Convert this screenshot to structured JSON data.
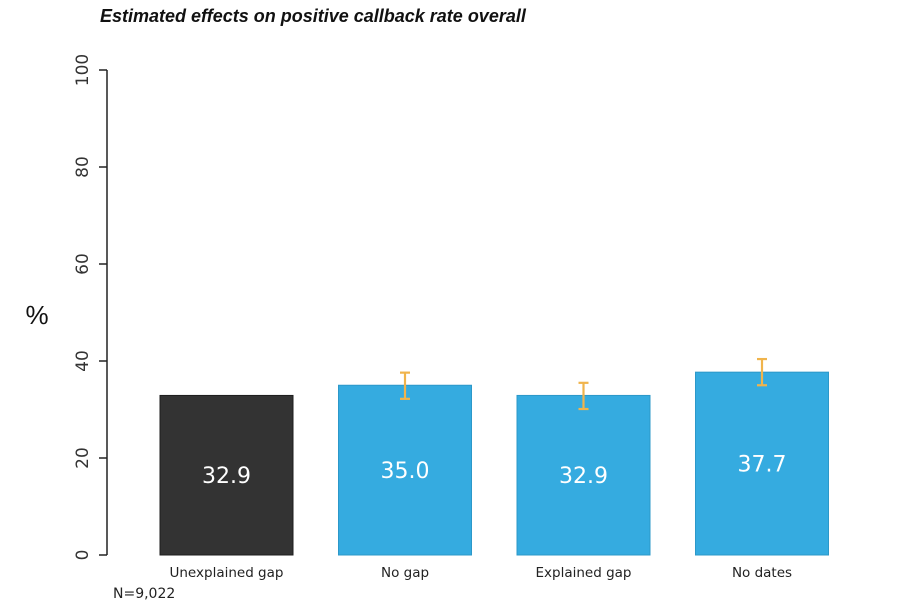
{
  "chart_data": {
    "type": "bar",
    "title": "Estimated effects on positive callback rate overall",
    "ylabel": "%",
    "xlabel": "",
    "ylim": [
      0,
      100
    ],
    "yticks": [
      "0",
      "20",
      "40",
      "60",
      "80",
      "100"
    ],
    "categories": [
      "Unexplained gap",
      "No gap",
      "Explained gap",
      "No dates"
    ],
    "values": [
      32.9,
      35.0,
      32.9,
      37.7
    ],
    "value_labels": [
      "32.9",
      "35.0",
      "32.9",
      "37.7"
    ],
    "error_bars": [
      null,
      [
        32.2,
        37.6
      ],
      [
        30.1,
        35.5
      ],
      [
        35.0,
        40.4
      ]
    ],
    "note": "N=9,022",
    "grid": false,
    "colors": {
      "reference_bar": "#333333",
      "bar": "#35abe0",
      "error_bar": "#f0b44c",
      "axis": "#222222"
    }
  }
}
